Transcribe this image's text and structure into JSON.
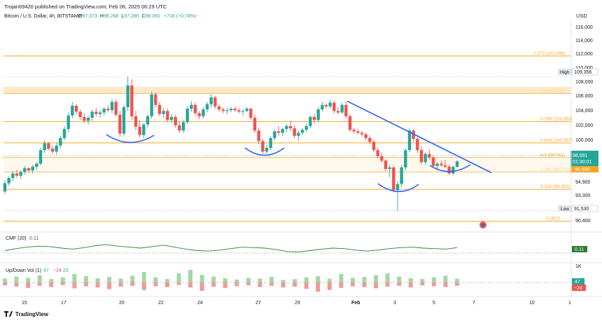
{
  "header": {
    "published": "Trojan69420 published on TradingView.com, Feb 06, 2025 06:29 UTC",
    "symbol": "Bitcoin / U.S. Dollar, 4h, BITSTAMP",
    "ohlc": {
      "o_label": "O",
      "o": "97,373",
      "h_label": "H",
      "h": "98,268",
      "l_label": "L",
      "l": "97,286",
      "c_label": "C",
      "c": "98,091",
      "change": "+718 (+0.74%)"
    }
  },
  "axis": {
    "currency": "USD",
    "price_ticks": [
      "116,000",
      "114,000",
      "112,000",
      "110,000",
      "108,000",
      "106,000",
      "104,000",
      "102,000",
      "100,000",
      "94,900",
      "93,300",
      "90,400"
    ],
    "date_ticks": [
      "15",
      "17",
      "20",
      "22",
      "24",
      "27",
      "29",
      "Feb",
      "3",
      "5",
      "7",
      "10",
      "1"
    ]
  },
  "badges": {
    "high_label": "High",
    "high_value": "109,356",
    "low_label": "Low",
    "low_value": "91,530",
    "price_value": "98,091",
    "countdown": "01:30:01",
    "level_96500": "96,500"
  },
  "fib_levels": [
    {
      "label": "1.272 (112,098)",
      "price": 112098
    },
    {
      "label": "1 (107,123)",
      "price": 107123
    },
    {
      "label": "0.786 (103,393)",
      "price": 103393
    },
    {
      "label": "0.618 (100,557)",
      "price": 100557
    },
    {
      "label": "0.5 (98,611)",
      "price": 98611
    },
    {
      "label": "0.382 (96,703)",
      "price": 96703
    },
    {
      "label": "0.236 (94,393)",
      "price": 94393
    },
    {
      "label": "0 (90,1",
      "price": 90150
    }
  ],
  "indicators": {
    "cmf": {
      "name": "CMF (20)",
      "value": "0.11",
      "axis_label": "0.11"
    },
    "updown": {
      "name": "Up/Down Vol (1)",
      "up": "47",
      "down": "−24",
      "net": "23",
      "axis_up": "47",
      "axis_down": "−24",
      "axis_top": "1K"
    }
  },
  "footer": {
    "brand": "TradingView"
  },
  "colors": {
    "up": "#26a69a",
    "down": "#ef5350",
    "fib": "#f5a623",
    "trend": "#2962ff",
    "cmf": "#2e7d32",
    "vol_up": "#a5d6a7",
    "vol_down": "#ef9a9a"
  },
  "chart_data": {
    "type": "candlestick",
    "title": "Bitcoin / U.S. Dollar, 4h, BITSTAMP",
    "ylim": [
      89500,
      117000
    ],
    "candles": [
      [
        94100,
        95600,
        93800,
        95200
      ],
      [
        95200,
        96100,
        94900,
        95900
      ],
      [
        95900,
        96800,
        95500,
        96500
      ],
      [
        96500,
        97000,
        95900,
        96200
      ],
      [
        96200,
        96900,
        95800,
        96700
      ],
      [
        96700,
        97500,
        96300,
        97200
      ],
      [
        97200,
        97300,
        96600,
        96900
      ],
      [
        96900,
        97600,
        96500,
        97400
      ],
      [
        97400,
        98000,
        97000,
        97800
      ],
      [
        97800,
        99900,
        97600,
        99600
      ],
      [
        99600,
        100900,
        99200,
        100500
      ],
      [
        100500,
        100700,
        99600,
        99800
      ],
      [
        99800,
        100200,
        99100,
        99400
      ],
      [
        99400,
        100600,
        99000,
        100200
      ],
      [
        100200,
        101500,
        99900,
        101200
      ],
      [
        101200,
        102800,
        100900,
        102400
      ],
      [
        102400,
        104600,
        102000,
        104200
      ],
      [
        104200,
        106000,
        103800,
        105500
      ],
      [
        105500,
        105700,
        104300,
        104700
      ],
      [
        104700,
        105000,
        103600,
        104000
      ],
      [
        104000,
        104500,
        103200,
        103500
      ],
      [
        103500,
        104200,
        103000,
        103900
      ],
      [
        103900,
        105000,
        103500,
        104700
      ],
      [
        104700,
        105200,
        104100,
        104400
      ],
      [
        104400,
        104900,
        103900,
        104600
      ],
      [
        104600,
        105300,
        104200,
        105100
      ],
      [
        105100,
        105600,
        104600,
        104900
      ],
      [
        104900,
        106400,
        104500,
        106000
      ],
      [
        106000,
        106300,
        104000,
        104300
      ],
      [
        104300,
        104800,
        101400,
        101800
      ],
      [
        101800,
        105600,
        101500,
        105300
      ],
      [
        105300,
        109356,
        104800,
        108200
      ],
      [
        108200,
        109000,
        103600,
        104100
      ],
      [
        104100,
        104800,
        102300,
        102700
      ],
      [
        102700,
        103600,
        101300,
        101600
      ],
      [
        101600,
        103200,
        101200,
        103000
      ],
      [
        103000,
        104400,
        102600,
        104100
      ],
      [
        104100,
        107400,
        103800,
        107000
      ],
      [
        107000,
        107200,
        105300,
        105600
      ],
      [
        105600,
        106000,
        104100,
        104400
      ],
      [
        104400,
        105200,
        103900,
        104800
      ],
      [
        104800,
        105100,
        103300,
        103600
      ],
      [
        103600,
        104400,
        103200,
        104000
      ],
      [
        104000,
        104300,
        102600,
        102900
      ],
      [
        102900,
        103400,
        101900,
        102200
      ],
      [
        102200,
        103600,
        101900,
        103300
      ],
      [
        103300,
        105400,
        103000,
        105100
      ],
      [
        105100,
        106100,
        104700,
        105600
      ],
      [
        105600,
        105900,
        104200,
        104500
      ],
      [
        104500,
        104800,
        103700,
        104100
      ],
      [
        104100,
        105300,
        103800,
        105000
      ],
      [
        105000,
        106000,
        104600,
        105700
      ],
      [
        105700,
        107000,
        105200,
        106600
      ],
      [
        106600,
        106800,
        105100,
        105400
      ],
      [
        105400,
        105700,
        104700,
        105000
      ],
      [
        105000,
        105300,
        104500,
        104800
      ],
      [
        104800,
        105200,
        104400,
        104900
      ],
      [
        104900,
        105300,
        104600,
        105100
      ],
      [
        105100,
        105400,
        104700,
        104900
      ],
      [
        104900,
        105200,
        104500,
        104700
      ],
      [
        104700,
        105000,
        104200,
        104800
      ],
      [
        104800,
        105300,
        104600,
        105100
      ],
      [
        105100,
        105200,
        103600,
        103900
      ],
      [
        103900,
        104300,
        101900,
        102200
      ],
      [
        102200,
        102600,
        100400,
        100800
      ],
      [
        100800,
        101100,
        99100,
        99400
      ],
      [
        99400,
        100300,
        99100,
        99900
      ],
      [
        99900,
        101500,
        99600,
        101200
      ],
      [
        101200,
        102300,
        100900,
        102100
      ],
      [
        102100,
        102800,
        101500,
        101900
      ],
      [
        101900,
        102600,
        101400,
        102400
      ],
      [
        102400,
        103100,
        102000,
        102800
      ],
      [
        102800,
        103500,
        102100,
        102500
      ],
      [
        102500,
        102900,
        101200,
        101500
      ],
      [
        101500,
        102200,
        100800,
        101900
      ],
      [
        101900,
        102500,
        101600,
        102300
      ],
      [
        102300,
        103100,
        102000,
        102800
      ],
      [
        102800,
        104200,
        102500,
        104000
      ],
      [
        104000,
        104400,
        103200,
        103600
      ],
      [
        103600,
        105300,
        103300,
        105000
      ],
      [
        105000,
        106000,
        104700,
        105600
      ],
      [
        105600,
        105800,
        105100,
        105400
      ],
      [
        105400,
        106300,
        105100,
        105900
      ],
      [
        105900,
        106200,
        104500,
        104800
      ],
      [
        104800,
        105300,
        104300,
        104600
      ],
      [
        104600,
        105900,
        104400,
        105600
      ],
      [
        105600,
        106000,
        103800,
        104100
      ],
      [
        104100,
        104400,
        102000,
        102300
      ],
      [
        102300,
        102600,
        101800,
        102100
      ],
      [
        102100,
        102400,
        101700,
        101900
      ],
      [
        101900,
        102200,
        101400,
        101700
      ],
      [
        101700,
        101900,
        100900,
        101200
      ],
      [
        101200,
        101600,
        100400,
        100700
      ],
      [
        100700,
        101000,
        99300,
        99600
      ],
      [
        99600,
        99900,
        98500,
        98800
      ],
      [
        98800,
        99300,
        97900,
        98200
      ],
      [
        98200,
        98400,
        96800,
        97100
      ],
      [
        97100,
        97600,
        96000,
        97300
      ],
      [
        97300,
        97500,
        94000,
        94300
      ],
      [
        94300,
        95500,
        91530,
        95100
      ],
      [
        95100,
        97600,
        94700,
        97300
      ],
      [
        97300,
        99800,
        96900,
        99600
      ],
      [
        99600,
        102600,
        99300,
        102200
      ],
      [
        102200,
        102400,
        100700,
        101100
      ],
      [
        101100,
        101300,
        99200,
        99600
      ],
      [
        99600,
        100100,
        97700,
        98000
      ],
      [
        98000,
        99300,
        97700,
        99100
      ],
      [
        99100,
        99700,
        98300,
        98600
      ],
      [
        98600,
        98900,
        97200,
        97500
      ],
      [
        97500,
        98000,
        96900,
        97800
      ],
      [
        97800,
        98200,
        97400,
        97600
      ],
      [
        97600,
        98300,
        97200,
        97400
      ],
      [
        97400,
        97700,
        96300,
        96500
      ],
      [
        96500,
        97500,
        96300,
        97373
      ],
      [
        97373,
        98268,
        97286,
        98091
      ]
    ],
    "trendline": {
      "from": {
        "x": "Jan 30",
        "y": 106100
      },
      "to": {
        "x": "Feb 7",
        "y": 96600
      }
    },
    "cmf_values": [
      0.05,
      0.09,
      0.12,
      0.14,
      0.13,
      0.1,
      0.08,
      0.11,
      0.15,
      0.17,
      0.14,
      0.12,
      0.1,
      0.13,
      0.16,
      0.12,
      0.08,
      0.05,
      0.04,
      0.06,
      0.09,
      0.12,
      0.11,
      0.1,
      0.07,
      0.03,
      0.02,
      0.05,
      0.08,
      0.1,
      0.09,
      0.06,
      0.04,
      0.06,
      0.09,
      0.11,
      0.12,
      0.1,
      0.09,
      0.08,
      0.11
    ],
    "volume": {
      "up": [
        9,
        14,
        11,
        17,
        8,
        12,
        20,
        15,
        10,
        13,
        9,
        16,
        25,
        12,
        8,
        22,
        30,
        18,
        14,
        10,
        7,
        11,
        9,
        13,
        6,
        8,
        12,
        15,
        9,
        20,
        11,
        13,
        17,
        22,
        14,
        10,
        8,
        12,
        16,
        9
      ],
      "down": [
        -7,
        -10,
        -13,
        -8,
        -11,
        -6,
        -14,
        -9,
        -12,
        -16,
        -10,
        -8,
        -18,
        -9,
        -11,
        -6,
        -12,
        -20,
        -10,
        -13,
        -9,
        -7,
        -11,
        -8,
        -12,
        -10,
        -15,
        -22,
        -18,
        -13,
        -9,
        -11,
        -14,
        -10,
        -8,
        -12,
        -7,
        -9,
        -11,
        -8
      ]
    }
  }
}
